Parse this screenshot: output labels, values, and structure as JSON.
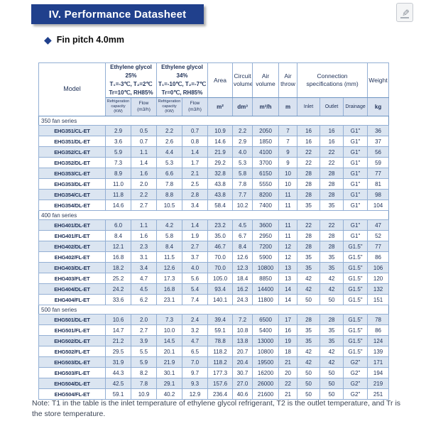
{
  "page": {
    "title": "IV. Performance Datasheet",
    "subtitle": "Fin pitch 4.0mm",
    "note": "Note: T1 in the table is the inlet temperature of ethylene glycol refrigerant, T2 is the outlet temperature, and Tr is the store temperature."
  },
  "icons": {
    "bullet": "◆",
    "edit": "✎"
  },
  "colors": {
    "title_bg": "#20408c",
    "table_border": "#93afd4",
    "subheader_bg": "#d9e2f0",
    "row_alt_bg": "#dbe5f1",
    "text": "#22345a"
  },
  "table": {
    "header": {
      "model": "Model",
      "glycol25": "Ethylene glycol 25%\nT₁=-3℃, T₂=2℃\nTr=10℃,  RH85%",
      "glycol34": "Ethylene glycol 34%\nT₁=-10℃, T₂=-7℃\nTr=0℃,  RH85%",
      "area": "Area",
      "circuit_volume": "Circuit volume",
      "air_volume": "Air volume",
      "air_throw": "Air throw",
      "connection": "Connection specifications (mm)",
      "weight": "Weight",
      "sub": [
        "Refrigeration\ncapacity\n(KW)",
        "Flow\n(m3/h)",
        "Refrigeration\ncapacity\n(KW)",
        "Flow\n(m3/h)",
        "m²",
        "dm³",
        "m³/h",
        "m",
        "Inlet",
        "Outlet",
        "Drainage",
        "kg"
      ]
    },
    "sections": [
      {
        "label": "350 fan series",
        "rows": [
          [
            "EHG351/CL-ET",
            "2.9",
            "0.5",
            "2.2",
            "0.7",
            "10.9",
            "2.2",
            "2050",
            "7",
            "16",
            "16",
            "G1\"",
            "36"
          ],
          [
            "EHG351/DL-ET",
            "3.6",
            "0.7",
            "2.6",
            "0.8",
            "14.6",
            "2.9",
            "1850",
            "7",
            "16",
            "16",
            "G1\"",
            "37"
          ],
          [
            "EHG352/CL-ET",
            "5.9",
            "1.1",
            "4.4",
            "1.4",
            "21.9",
            "4.0",
            "4100",
            "9",
            "22",
            "22",
            "G1\"",
            "56"
          ],
          [
            "EHG352/DL-ET",
            "7.3",
            "1.4",
            "5.3",
            "1.7",
            "29.2",
            "5.3",
            "3700",
            "9",
            "22",
            "22",
            "G1\"",
            "59"
          ],
          [
            "EHG353/CL-ET",
            "8.9",
            "1.6",
            "6.6",
            "2.1",
            "32.8",
            "5.8",
            "6150",
            "10",
            "28",
            "28",
            "G1\"",
            "77"
          ],
          [
            "EHG353/DL-ET",
            "11.0",
            "2.0",
            "7.8",
            "2.5",
            "43.8",
            "7.8",
            "5550",
            "10",
            "28",
            "28",
            "G1\"",
            "81"
          ],
          [
            "EHG354/CL-ET",
            "11.8",
            "2.2",
            "8.8",
            "2.8",
            "43.8",
            "7.7",
            "8200",
            "11",
            "28",
            "28",
            "G1\"",
            "98"
          ],
          [
            "EHG354/DL-ET",
            "14.6",
            "2.7",
            "10.5",
            "3.4",
            "58.4",
            "10.2",
            "7400",
            "11",
            "35",
            "35",
            "G1\"",
            "104"
          ]
        ]
      },
      {
        "label": "400 fan series",
        "rows": [
          [
            "EHG401/DL-ET",
            "6.0",
            "1.1",
            "4.2",
            "1.4",
            "23.2",
            "4.5",
            "3600",
            "11",
            "22",
            "22",
            "G1\"",
            "47"
          ],
          [
            "EHG401/FL-ET",
            "8.4",
            "1.6",
            "5.8",
            "1.9",
            "35.0",
            "6.7",
            "2950",
            "11",
            "28",
            "28",
            "G1\"",
            "52"
          ],
          [
            "EHG402/DL-ET",
            "12.1",
            "2.3",
            "8.4",
            "2.7",
            "46.7",
            "8.4",
            "7200",
            "12",
            "28",
            "28",
            "G1.5\"",
            "77"
          ],
          [
            "EHG402/FL-ET",
            "16.8",
            "3.1",
            "11.5",
            "3.7",
            "70.0",
            "12.6",
            "5900",
            "12",
            "35",
            "35",
            "G1.5\"",
            "86"
          ],
          [
            "EHG403/DL-ET",
            "18.2",
            "3.4",
            "12.6",
            "4.0",
            "70.0",
            "12.3",
            "10800",
            "13",
            "35",
            "35",
            "G1.5\"",
            "106"
          ],
          [
            "EHG403/FL-ET",
            "25.2",
            "4.7",
            "17.3",
            "5.6",
            "105.0",
            "18.4",
            "8850",
            "13",
            "42",
            "42",
            "G1.5\"",
            "120"
          ],
          [
            "EHG404/DL-ET",
            "24.2",
            "4.5",
            "16.8",
            "5.4",
            "93.4",
            "16.2",
            "14400",
            "14",
            "42",
            "42",
            "G1.5\"",
            "132"
          ],
          [
            "EHG404/FL-ET",
            "33.6",
            "6.2",
            "23.1",
            "7.4",
            "140.1",
            "24.3",
            "11800",
            "14",
            "50",
            "50",
            "G1.5\"",
            "151"
          ]
        ]
      },
      {
        "label": "500 fan series",
        "rows": [
          [
            "EHG501/DL-ET",
            "10.6",
            "2.0",
            "7.3",
            "2.4",
            "39.4",
            "7.2",
            "6500",
            "17",
            "28",
            "28",
            "G1.5\"",
            "78"
          ],
          [
            "EHG501/FL-ET",
            "14.7",
            "2.7",
            "10.0",
            "3.2",
            "59.1",
            "10.8",
            "5400",
            "16",
            "35",
            "35",
            "G1.5\"",
            "86"
          ],
          [
            "EHG502/DL-ET",
            "21.2",
            "3.9",
            "14.5",
            "4.7",
            "78.8",
            "13.8",
            "13000",
            "19",
            "35",
            "35",
            "G1.5\"",
            "124"
          ],
          [
            "EHG502/FL-ET",
            "29.5",
            "5.5",
            "20.1",
            "6.5",
            "118.2",
            "20.7",
            "10800",
            "18",
            "42",
            "42",
            "G1.5\"",
            "139"
          ],
          [
            "EHG503/DL-ET",
            "31.9",
            "5.9",
            "21.9",
            "7.0",
            "118.2",
            "20.4",
            "19500",
            "21",
            "42",
            "42",
            "G2\"",
            "171"
          ],
          [
            "EHG503/FL-ET",
            "44.3",
            "8.2",
            "30.1",
            "9.7",
            "177.3",
            "30.7",
            "16200",
            "20",
            "50",
            "50",
            "G2\"",
            "194"
          ],
          [
            "EHG504/DL-ET",
            "42.5",
            "7.8",
            "29.1",
            "9.3",
            "157.6",
            "27.0",
            "26000",
            "22",
            "50",
            "50",
            "G2\"",
            "219"
          ],
          [
            "EHG504/FL-ET",
            "59.1",
            "10.9",
            "40.2",
            "12.9",
            "236.4",
            "40.6",
            "21600",
            "21",
            "50",
            "50",
            "G2\"",
            "251"
          ]
        ]
      }
    ]
  }
}
